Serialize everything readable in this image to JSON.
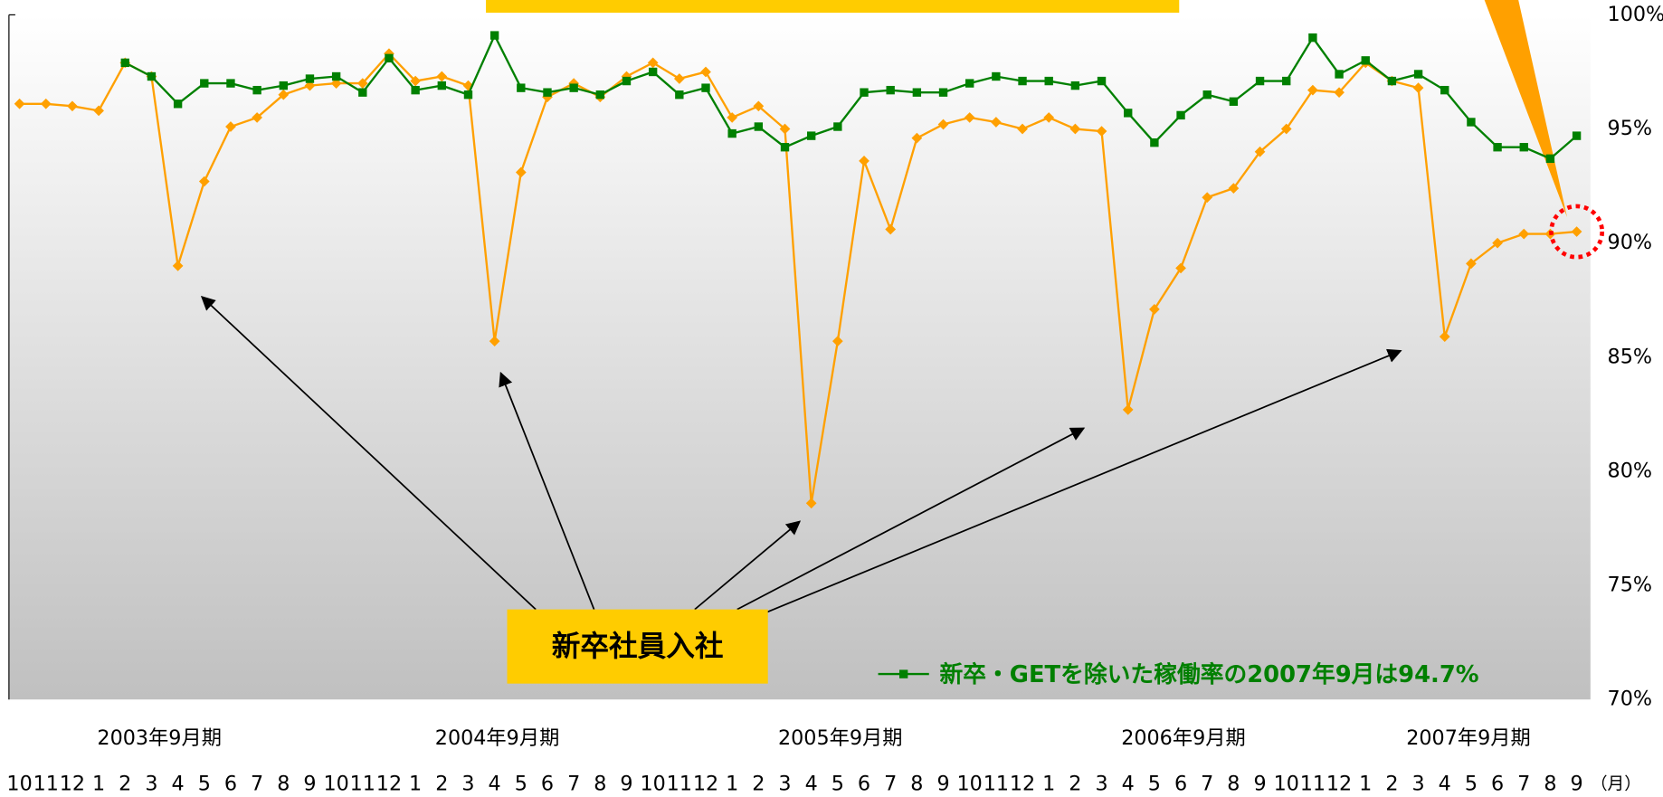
{
  "chart_data": {
    "type": "line",
    "categories": [
      "10",
      "11",
      "12",
      "1",
      "2",
      "3",
      "4",
      "5",
      "6",
      "7",
      "8",
      "9",
      "10",
      "11",
      "12",
      "1",
      "2",
      "3",
      "4",
      "5",
      "6",
      "7",
      "8",
      "9",
      "10",
      "11",
      "12",
      "1",
      "2",
      "3",
      "4",
      "5",
      "6",
      "7",
      "8",
      "9",
      "10",
      "11",
      "12",
      "1",
      "2",
      "3",
      "4",
      "5",
      "6",
      "7",
      "8",
      "9",
      "10",
      "11",
      "12",
      "1",
      "2",
      "3",
      "4",
      "5",
      "6",
      "7",
      "8",
      "9"
    ],
    "period_labels": [
      "2003年9月期",
      "2004年9月期",
      "2005年9月期",
      "2006年9月期",
      "2007年9月期"
    ],
    "x_unit": "（月）",
    "series": [
      {
        "color": "#ffa000",
        "values": [
          96.1,
          96.1,
          96.0,
          95.8,
          97.9,
          97.3,
          89.0,
          92.7,
          95.1,
          95.5,
          96.5,
          96.9,
          97.0,
          97.0,
          98.3,
          97.1,
          97.3,
          96.9,
          85.7,
          93.1,
          96.4,
          97.0,
          96.4,
          97.3,
          97.9,
          97.2,
          97.5,
          95.5,
          96.0,
          95.0,
          78.6,
          85.7,
          93.6,
          90.6,
          94.6,
          95.2,
          95.5,
          95.3,
          95.0,
          95.5,
          95.0,
          94.9,
          82.7,
          87.1,
          88.9,
          92.0,
          92.4,
          94.0,
          95.0,
          96.7,
          96.6,
          97.9,
          97.1,
          96.8,
          85.9,
          89.1,
          90.0,
          90.4,
          90.4,
          90.5
        ]
      },
      {
        "name": "新卒・GETを除いた稼働率の2007年9月は94.7%",
        "color": "#008000",
        "values": [
          null,
          null,
          null,
          null,
          97.9,
          97.3,
          96.1,
          97.0,
          97.0,
          96.7,
          96.9,
          97.2,
          97.3,
          96.6,
          98.1,
          96.7,
          96.9,
          96.5,
          99.1,
          96.8,
          96.6,
          96.8,
          96.5,
          97.1,
          97.5,
          96.5,
          96.8,
          94.8,
          95.1,
          94.2,
          94.7,
          95.1,
          96.6,
          96.7,
          96.6,
          96.6,
          97.0,
          97.3,
          97.1,
          97.1,
          96.9,
          97.1,
          95.7,
          94.4,
          95.6,
          96.5,
          96.2,
          97.1,
          97.1,
          99.0,
          97.4,
          98.0,
          97.1,
          97.4,
          96.7,
          95.3,
          94.2,
          94.2,
          93.7,
          94.7
        ]
      }
    ],
    "annotation": "新卒社員入社",
    "ylim": [
      70,
      100
    ],
    "yticks": [
      {
        "value": 70,
        "label": "70%"
      },
      {
        "value": 75,
        "label": "75%"
      },
      {
        "value": 80,
        "label": "80%"
      },
      {
        "value": 85,
        "label": "85%"
      },
      {
        "value": 90,
        "label": "90%"
      },
      {
        "value": 95,
        "label": "95%"
      },
      {
        "value": 100,
        "label": "100%"
      }
    ]
  }
}
